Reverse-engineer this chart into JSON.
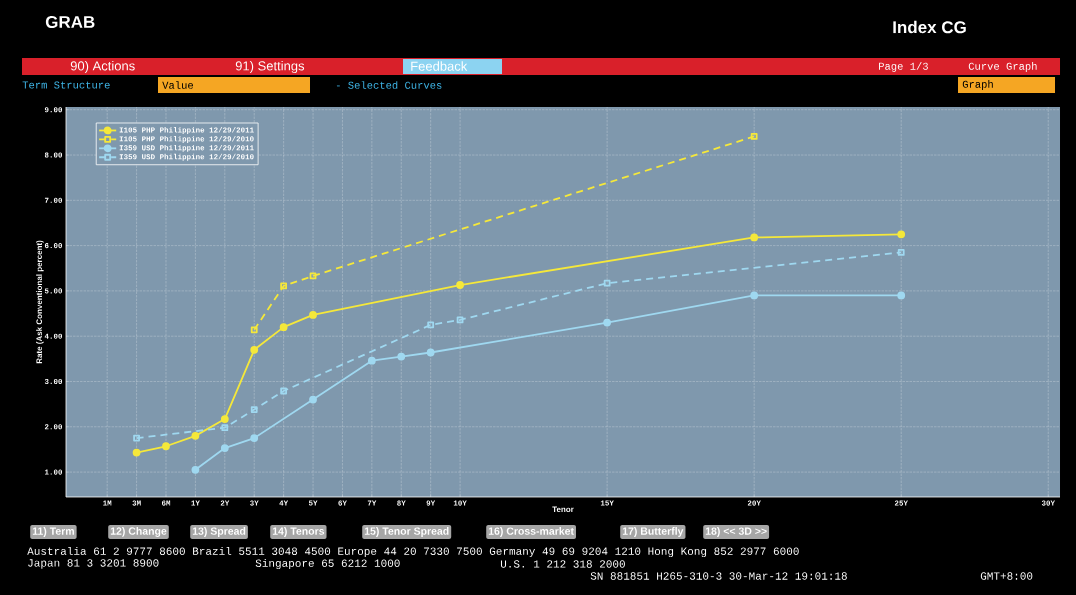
{
  "chart_data": {
    "type": "line",
    "ylabel": "Rate (Ask Conventional percent)",
    "xlabel": "Tenor",
    "categories": [
      "1M",
      "3M",
      "6M",
      "1Y",
      "2Y",
      "3Y",
      "4Y",
      "5Y",
      "6Y",
      "7Y",
      "8Y",
      "9Y",
      "10Y",
      null,
      null,
      null,
      null,
      "15Y",
      null,
      null,
      null,
      null,
      "20Y",
      null,
      null,
      null,
      null,
      "25Y",
      null,
      null,
      null,
      null,
      "30Y"
    ],
    "ylim": [
      0.45,
      9.06
    ],
    "yticks": [
      {
        "value": 1,
        "label": "1.00"
      },
      {
        "value": 2,
        "label": "2.00"
      },
      {
        "value": 3,
        "label": "3.00"
      },
      {
        "value": 4,
        "label": "4.00"
      },
      {
        "value": 5,
        "label": "5.00"
      },
      {
        "value": 6,
        "label": "6.00"
      },
      {
        "value": 7,
        "label": "7.00"
      },
      {
        "value": 8,
        "label": "8.00"
      },
      {
        "value": 9,
        "label": "9.00"
      }
    ],
    "grid": true,
    "legend": "top left",
    "series": [
      {
        "name": "I105 PHP Philippine 12/29/2011",
        "color": "#f5e83a",
        "marker": "circle",
        "line_style": "solid",
        "values": [
          null,
          1.43,
          1.57,
          1.8,
          2.17,
          3.7,
          4.2,
          4.47,
          null,
          null,
          null,
          null,
          5.13,
          null,
          null,
          null,
          null,
          null,
          null,
          null,
          null,
          null,
          6.18,
          null,
          null,
          null,
          null,
          6.25,
          null,
          null,
          null,
          null,
          null
        ]
      },
      {
        "name": "I105 PHP Philippine 12/29/2010",
        "color": "#f5e83a",
        "marker": "square",
        "line_style": "dashed",
        "values": [
          null,
          null,
          null,
          null,
          null,
          4.14,
          5.11,
          5.33,
          null,
          null,
          null,
          null,
          null,
          null,
          null,
          null,
          null,
          null,
          null,
          null,
          null,
          null,
          8.41,
          null,
          null,
          null,
          null,
          null,
          null,
          null,
          null,
          null,
          null
        ]
      },
      {
        "name": "I359 USD Philippine 12/29/2011",
        "color": "#9fd8f0",
        "marker": "circle",
        "line_style": "solid",
        "values": [
          null,
          null,
          null,
          1.05,
          1.53,
          1.75,
          null,
          2.6,
          null,
          3.46,
          3.55,
          3.64,
          null,
          null,
          null,
          null,
          null,
          4.3,
          null,
          null,
          null,
          null,
          4.9,
          null,
          null,
          null,
          null,
          4.9,
          null,
          null,
          null,
          null,
          null
        ]
      },
      {
        "name": "I359 USD Philippine 12/29/2010",
        "color": "#9fd8f0",
        "marker": "square",
        "line_style": "dashed",
        "values": [
          null,
          1.75,
          null,
          null,
          1.98,
          2.38,
          2.79,
          null,
          null,
          null,
          null,
          4.25,
          4.36,
          null,
          null,
          null,
          null,
          5.17,
          null,
          null,
          null,
          null,
          null,
          null,
          null,
          null,
          null,
          5.85,
          null,
          null,
          null,
          null,
          null
        ]
      }
    ],
    "annotations": [
      "GRAB",
      "Index CG",
      "90) Actions",
      "91) Settings",
      "Feedback",
      "Page 1/3",
      "Curve Graph",
      "Term Structure",
      "Value",
      "- Selected Curves",
      "Graph",
      "11) Term",
      "12) Change",
      "13) Spread",
      "14) Tenors",
      "15) Tenor Spread",
      "16) Cross-market",
      "17) Butterfly",
      "18) << 3D >>",
      "Australia 61 2 9777 8600 Brazil 5511 3048 4500 Europe 44 20 7330 7500 Germany 49 69 9204 1210 Hong Kong 852 2977 6000",
      "Japan 81 3 3201 8900",
      "Singapore 65 6212 1000",
      "U.S. 1 212 318 2000",
      "SN 881851 H265-310-3 30-Mar-12 19:01:18",
      "GMT+8:00"
    ]
  }
}
